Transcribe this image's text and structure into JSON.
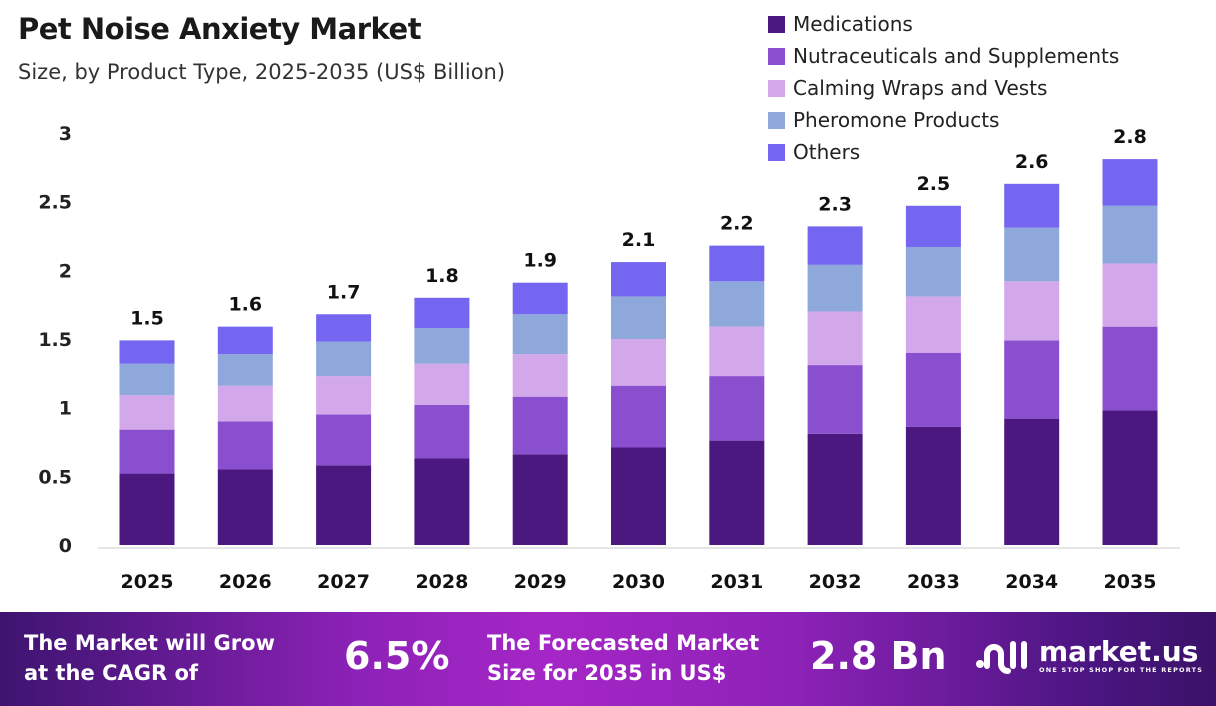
{
  "header": {
    "title": "Pet Noise Anxiety Market",
    "subtitle": "Size, by Product Type, 2025-2035 (US$ Billion)"
  },
  "chart_data": {
    "type": "bar",
    "stacked": true,
    "title": "Pet Noise Anxiety Market",
    "subtitle": "Size, by Product Type, 2025-2035 (US$ Billion)",
    "categories": [
      "2025",
      "2026",
      "2027",
      "2028",
      "2029",
      "2030",
      "2031",
      "2032",
      "2033",
      "2034",
      "2035"
    ],
    "series": [
      {
        "name": "Medications",
        "color": "#4b1880",
        "values": [
          0.52,
          0.55,
          0.58,
          0.63,
          0.66,
          0.71,
          0.76,
          0.81,
          0.86,
          0.92,
          0.98
        ]
      },
      {
        "name": "Nutraceuticals and Supplements",
        "color": "#8a4fcf",
        "values": [
          0.32,
          0.35,
          0.37,
          0.39,
          0.42,
          0.45,
          0.47,
          0.5,
          0.54,
          0.57,
          0.61
        ]
      },
      {
        "name": "Calming Wraps and Vests",
        "color": "#d3a8ea",
        "values": [
          0.25,
          0.26,
          0.28,
          0.3,
          0.31,
          0.34,
          0.36,
          0.39,
          0.41,
          0.43,
          0.46
        ]
      },
      {
        "name": "Pheromone Products",
        "color": "#8fa8dc",
        "values": [
          0.23,
          0.23,
          0.25,
          0.26,
          0.29,
          0.31,
          0.33,
          0.34,
          0.36,
          0.39,
          0.42
        ]
      },
      {
        "name": "Others",
        "color": "#7466f0",
        "values": [
          0.17,
          0.2,
          0.2,
          0.22,
          0.23,
          0.25,
          0.26,
          0.28,
          0.3,
          0.32,
          0.34
        ]
      }
    ],
    "totals_labels": [
      "1.5",
      "1.6",
      "1.7",
      "1.8",
      "1.9",
      "2.1",
      "2.2",
      "2.3",
      "2.5",
      "2.6",
      "2.8"
    ],
    "yticks": [
      "0",
      "0.5",
      "1",
      "1.5",
      "2",
      "2.5",
      "3"
    ],
    "ylim": [
      0,
      3
    ],
    "grid": false,
    "legend": "top-right"
  },
  "banner": {
    "cagr_text_1": "The Market will Grow",
    "cagr_text_2": "at the CAGR of",
    "cagr_value": "6.5%",
    "forecast_text_1": "The Forecasted Market",
    "forecast_text_2": "Size for 2035 in US$",
    "forecast_value": "2.8 Bn",
    "logo_name": "market.us",
    "logo_tagline": "ONE STOP SHOP FOR THE REPORTS"
  }
}
